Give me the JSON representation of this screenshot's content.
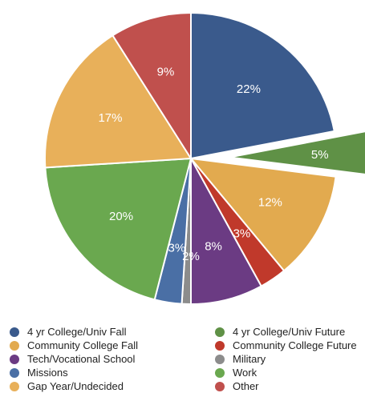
{
  "chart_data": {
    "type": "pie",
    "slices": [
      {
        "label": "4 yr College/Univ Fall",
        "value": 22,
        "text": "22%",
        "color": "#3a5a8c"
      },
      {
        "label": "4 yr College/Univ Future",
        "value": 5,
        "text": "5%",
        "color": "#5f9146",
        "exploded": true
      },
      {
        "label": "Community College Fall",
        "value": 12,
        "text": "12%",
        "color": "#e2aa4f"
      },
      {
        "label": "Community College Future",
        "value": 3,
        "text": "3%",
        "color": "#c0392b"
      },
      {
        "label": "Tech/Vocational School",
        "value": 8,
        "text": "8%",
        "color": "#6b3b83"
      },
      {
        "label": "Military",
        "value": 1,
        "text": "",
        "color": "#8c8c8c"
      },
      {
        "label": "Missions",
        "value": 3,
        "text": "3%",
        "color": "#4a6fa5"
      },
      {
        "label": "Work",
        "value": 20,
        "text": "20%",
        "color": "#6aa84f"
      },
      {
        "label": "Gap Year/Undecided",
        "value": 17,
        "text": "17%",
        "color": "#e8b05a"
      },
      {
        "label": "Other",
        "value": 9,
        "text": "9%",
        "color": "#c0504d"
      }
    ],
    "extra_labels": [
      {
        "text": "2%"
      }
    ],
    "legend_position": "bottom"
  }
}
